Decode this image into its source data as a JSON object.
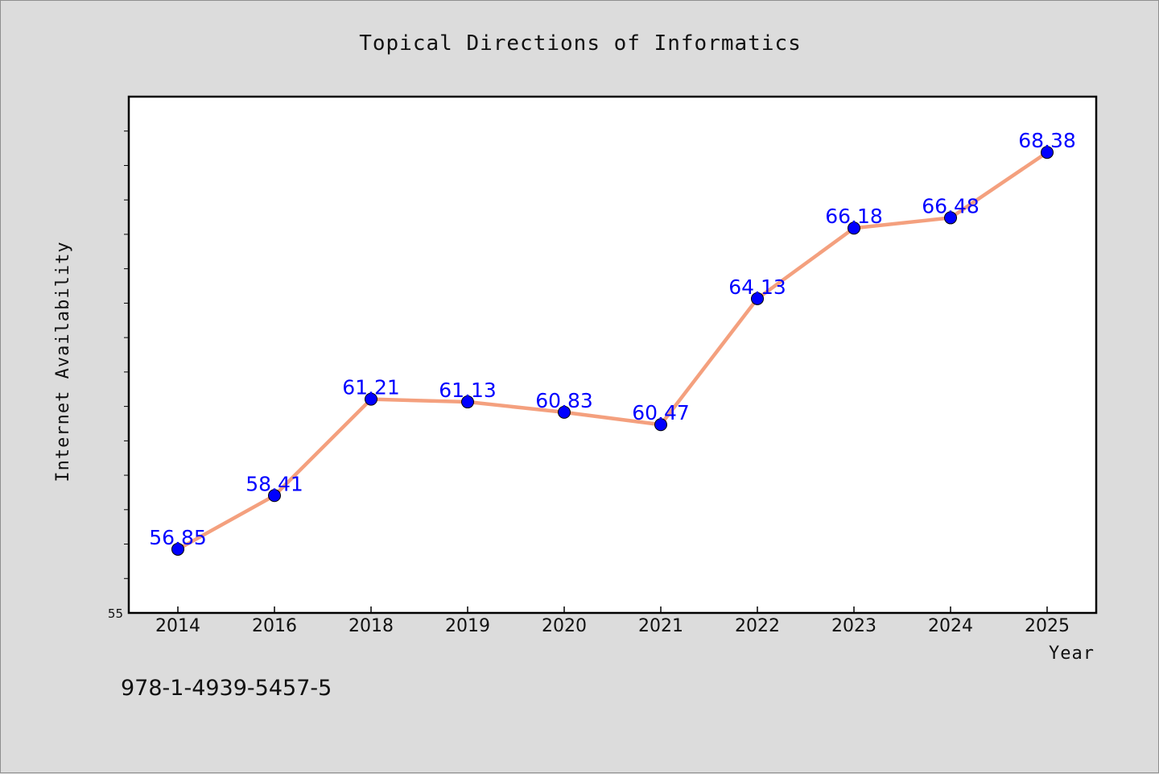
{
  "chart_data": {
    "type": "line",
    "title": "Topical Directions of Informatics",
    "xlabel": "Year",
    "ylabel": "Internet Availability",
    "categories": [
      "2014",
      "2016",
      "2018",
      "2019",
      "2020",
      "2021",
      "2022",
      "2023",
      "2024",
      "2025"
    ],
    "series": [
      {
        "values": [
          56.85,
          58.41,
          61.21,
          61.13,
          60.83,
          60.47,
          64.13,
          66.18,
          66.48,
          68.38
        ],
        "labels": [
          "56.85",
          "58.41",
          "61.21",
          "61.13",
          "60.83",
          "60.47",
          "64.13",
          "66.18",
          "66.48",
          "68.38"
        ],
        "line_color": "#f4a07e",
        "marker_color": "#0000ff"
      }
    ],
    "ylim": [
      55,
      70
    ],
    "y_tick_labels_shown": [
      "55"
    ],
    "grid": false,
    "legend": "none"
  },
  "annotation": "978-1-4939-5457-5",
  "colors": {
    "background": "#dcdcdc",
    "plot_background": "#ffffff",
    "line": "#f4a07e",
    "marker": "#0000ff",
    "data_label": "#0000ff"
  }
}
